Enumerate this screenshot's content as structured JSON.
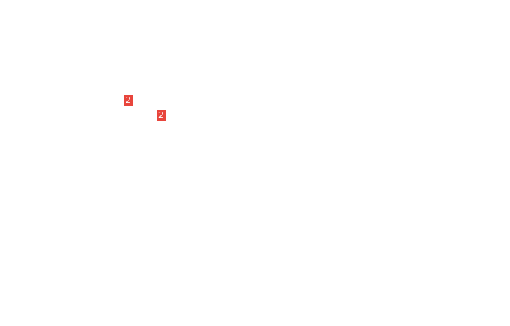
{
  "badges": [
    {
      "count": "2",
      "color": "#e8453c"
    },
    {
      "count": "2",
      "color": "#e8453c"
    }
  ]
}
